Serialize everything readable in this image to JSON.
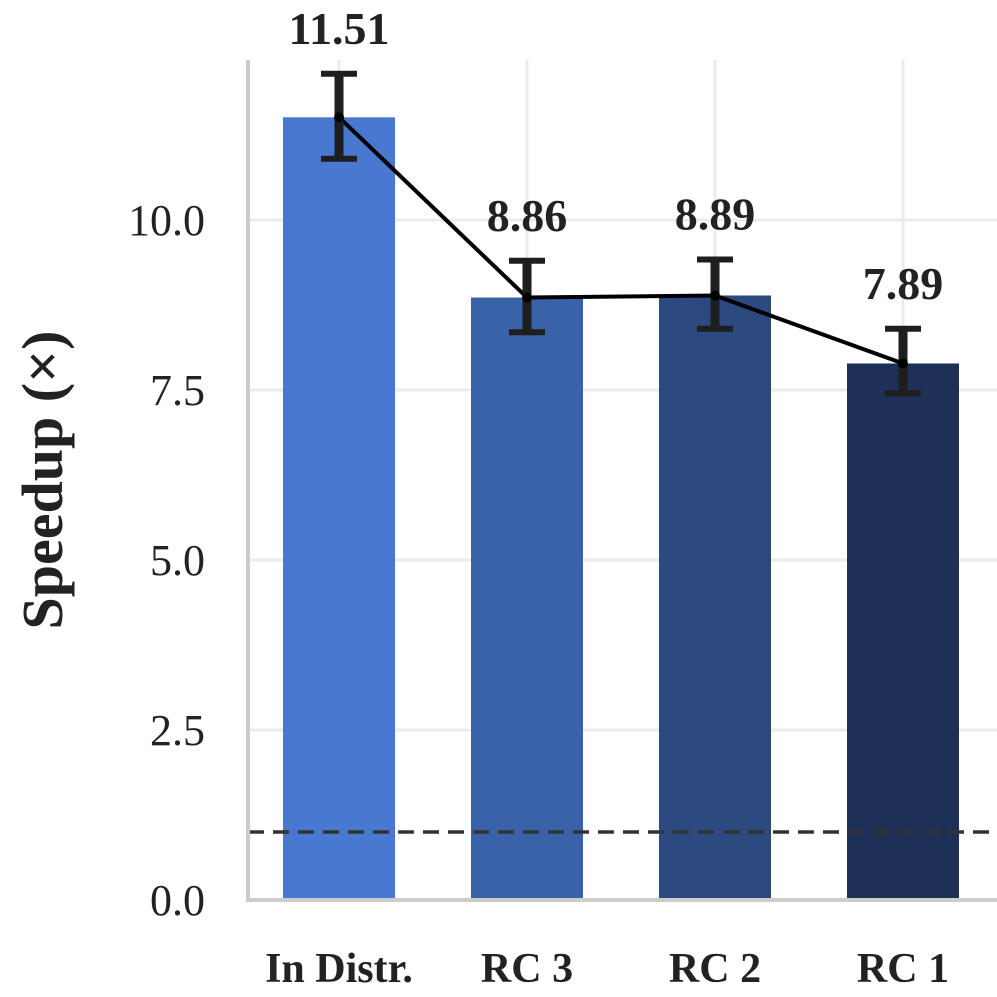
{
  "chart_data": {
    "type": "bar",
    "title": "",
    "xlabel": "",
    "ylabel": "Speedup (×)",
    "categories": [
      "In Distr.",
      "RC 3",
      "RC 2",
      "RC 1"
    ],
    "values": [
      11.51,
      8.86,
      8.89,
      7.89
    ],
    "value_labels": [
      "11.51",
      "8.86",
      "8.89",
      "7.89"
    ],
    "error_low": [
      10.9,
      8.35,
      8.4,
      7.45
    ],
    "error_high": [
      12.15,
      9.4,
      9.42,
      8.4
    ],
    "bar_colors": [
      "#4878d0",
      "#3a62a8",
      "#2c4a80",
      "#1f3056"
    ],
    "trend_line": {
      "visible": true,
      "color": "#000000"
    },
    "reference_line": {
      "y": 1.0,
      "style": "dashed",
      "color": "#333333"
    },
    "ylim": [
      0,
      12.5
    ],
    "yticks": [
      0.0,
      2.5,
      5.0,
      7.5,
      10.0
    ],
    "ytick_labels": [
      "0.0",
      "2.5",
      "5.0",
      "7.5",
      "10.0"
    ],
    "grid": true
  }
}
